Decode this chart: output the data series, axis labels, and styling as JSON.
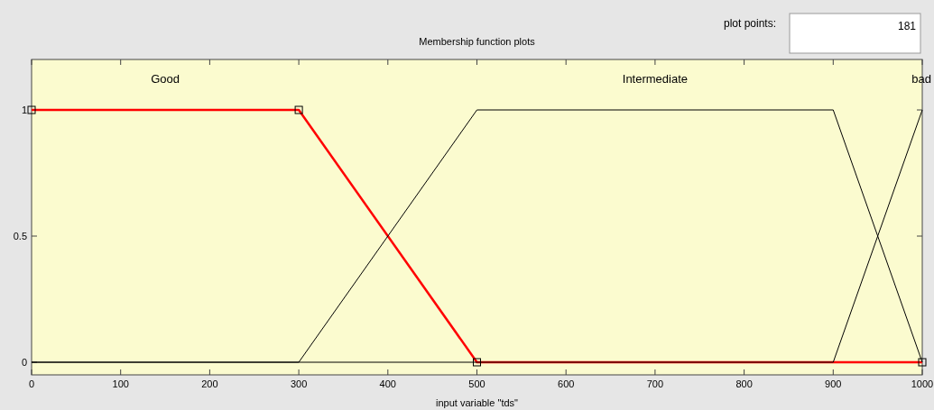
{
  "chart_data": {
    "type": "line",
    "title": "Membership function plots",
    "xlabel": "input variable \"tds\"",
    "annotations": [
      "plot points:",
      "181"
    ],
    "xlim": [
      0,
      1000
    ],
    "xticks": [
      0,
      100,
      200,
      300,
      400,
      500,
      600,
      700,
      800,
      900,
      1000
    ],
    "ylim": [
      -0.05,
      1.2
    ],
    "yticks": [
      0,
      0.5,
      1
    ],
    "grid": false,
    "series": [
      {
        "name": "Good",
        "color": "#ff0000",
        "x": [
          0,
          300,
          500,
          1000
        ],
        "values": [
          1,
          1,
          0,
          0
        ],
        "marker": "square"
      },
      {
        "name": "Intermediate",
        "color": "#000000",
        "x": [
          0,
          300,
          500,
          900,
          1000
        ],
        "values": [
          0,
          0,
          1,
          1,
          0
        ],
        "marker": "none"
      },
      {
        "name": "bad",
        "color": "#000000",
        "x": [
          0,
          900,
          1000
        ],
        "values": [
          0,
          0,
          1
        ],
        "marker": "none"
      }
    ]
  }
}
